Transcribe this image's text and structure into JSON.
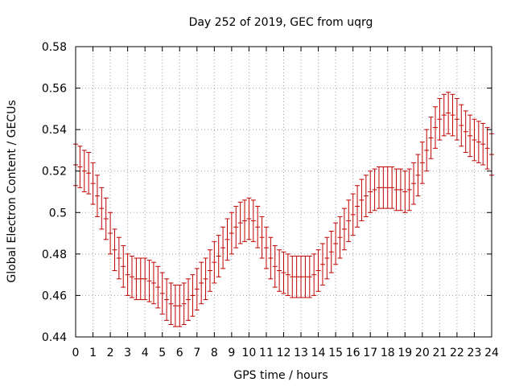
{
  "chart_data": {
    "type": "line",
    "title": "Day 252 of 2019, GEC from uqrg",
    "xlabel": "GPS time / hours",
    "ylabel": "Global Electron Content / GECUs",
    "xlim": [
      0,
      24
    ],
    "ylim": [
      0.44,
      0.58
    ],
    "x_ticks": [
      "0",
      "1",
      "2",
      "3",
      "4",
      "5",
      "6",
      "7",
      "8",
      "9",
      "10",
      "11",
      "12",
      "13",
      "14",
      "15",
      "16",
      "17",
      "18",
      "19",
      "20",
      "21",
      "22",
      "23",
      "24"
    ],
    "y_ticks": [
      "0.44",
      "0.46",
      "0.48",
      "0.5",
      "0.52",
      "0.54",
      "0.56",
      "0.58"
    ],
    "grid": true,
    "error_half_width": 0.01,
    "series": [
      {
        "name": "GEC",
        "color": "#c00000",
        "x": [
          0,
          0.25,
          0.5,
          0.75,
          1,
          1.25,
          1.5,
          1.75,
          2,
          2.25,
          2.5,
          2.75,
          3,
          3.25,
          3.5,
          3.75,
          4,
          4.25,
          4.5,
          4.75,
          5,
          5.25,
          5.5,
          5.75,
          6,
          6.25,
          6.5,
          6.75,
          7,
          7.25,
          7.5,
          7.75,
          8,
          8.25,
          8.5,
          8.75,
          9,
          9.25,
          9.5,
          9.75,
          10,
          10.25,
          10.5,
          10.75,
          11,
          11.25,
          11.5,
          11.75,
          12,
          12.25,
          12.5,
          12.75,
          13,
          13.25,
          13.5,
          13.75,
          14,
          14.25,
          14.5,
          14.75,
          15,
          15.25,
          15.5,
          15.75,
          16,
          16.25,
          16.5,
          16.75,
          17,
          17.25,
          17.5,
          17.75,
          18,
          18.25,
          18.5,
          18.75,
          19,
          19.25,
          19.5,
          19.75,
          20,
          20.25,
          20.5,
          20.75,
          21,
          21.25,
          21.5,
          21.75,
          22,
          22.25,
          22.5,
          22.75,
          23,
          23.25,
          23.5,
          23.75,
          24
        ],
        "y": [
          0.523,
          0.522,
          0.52,
          0.519,
          0.514,
          0.508,
          0.502,
          0.497,
          0.49,
          0.482,
          0.478,
          0.474,
          0.47,
          0.469,
          0.468,
          0.468,
          0.468,
          0.467,
          0.466,
          0.464,
          0.461,
          0.458,
          0.456,
          0.455,
          0.455,
          0.456,
          0.458,
          0.46,
          0.463,
          0.466,
          0.468,
          0.472,
          0.476,
          0.479,
          0.483,
          0.487,
          0.49,
          0.493,
          0.495,
          0.496,
          0.497,
          0.496,
          0.493,
          0.488,
          0.483,
          0.478,
          0.474,
          0.472,
          0.471,
          0.47,
          0.469,
          0.469,
          0.469,
          0.469,
          0.469,
          0.47,
          0.472,
          0.475,
          0.478,
          0.481,
          0.485,
          0.488,
          0.492,
          0.496,
          0.499,
          0.503,
          0.506,
          0.508,
          0.51,
          0.511,
          0.512,
          0.512,
          0.512,
          0.512,
          0.511,
          0.511,
          0.51,
          0.511,
          0.514,
          0.518,
          0.524,
          0.53,
          0.536,
          0.541,
          0.545,
          0.547,
          0.548,
          0.547,
          0.545,
          0.542,
          0.539,
          0.537,
          0.535,
          0.534,
          0.533,
          0.531,
          0.528
        ]
      }
    ]
  }
}
